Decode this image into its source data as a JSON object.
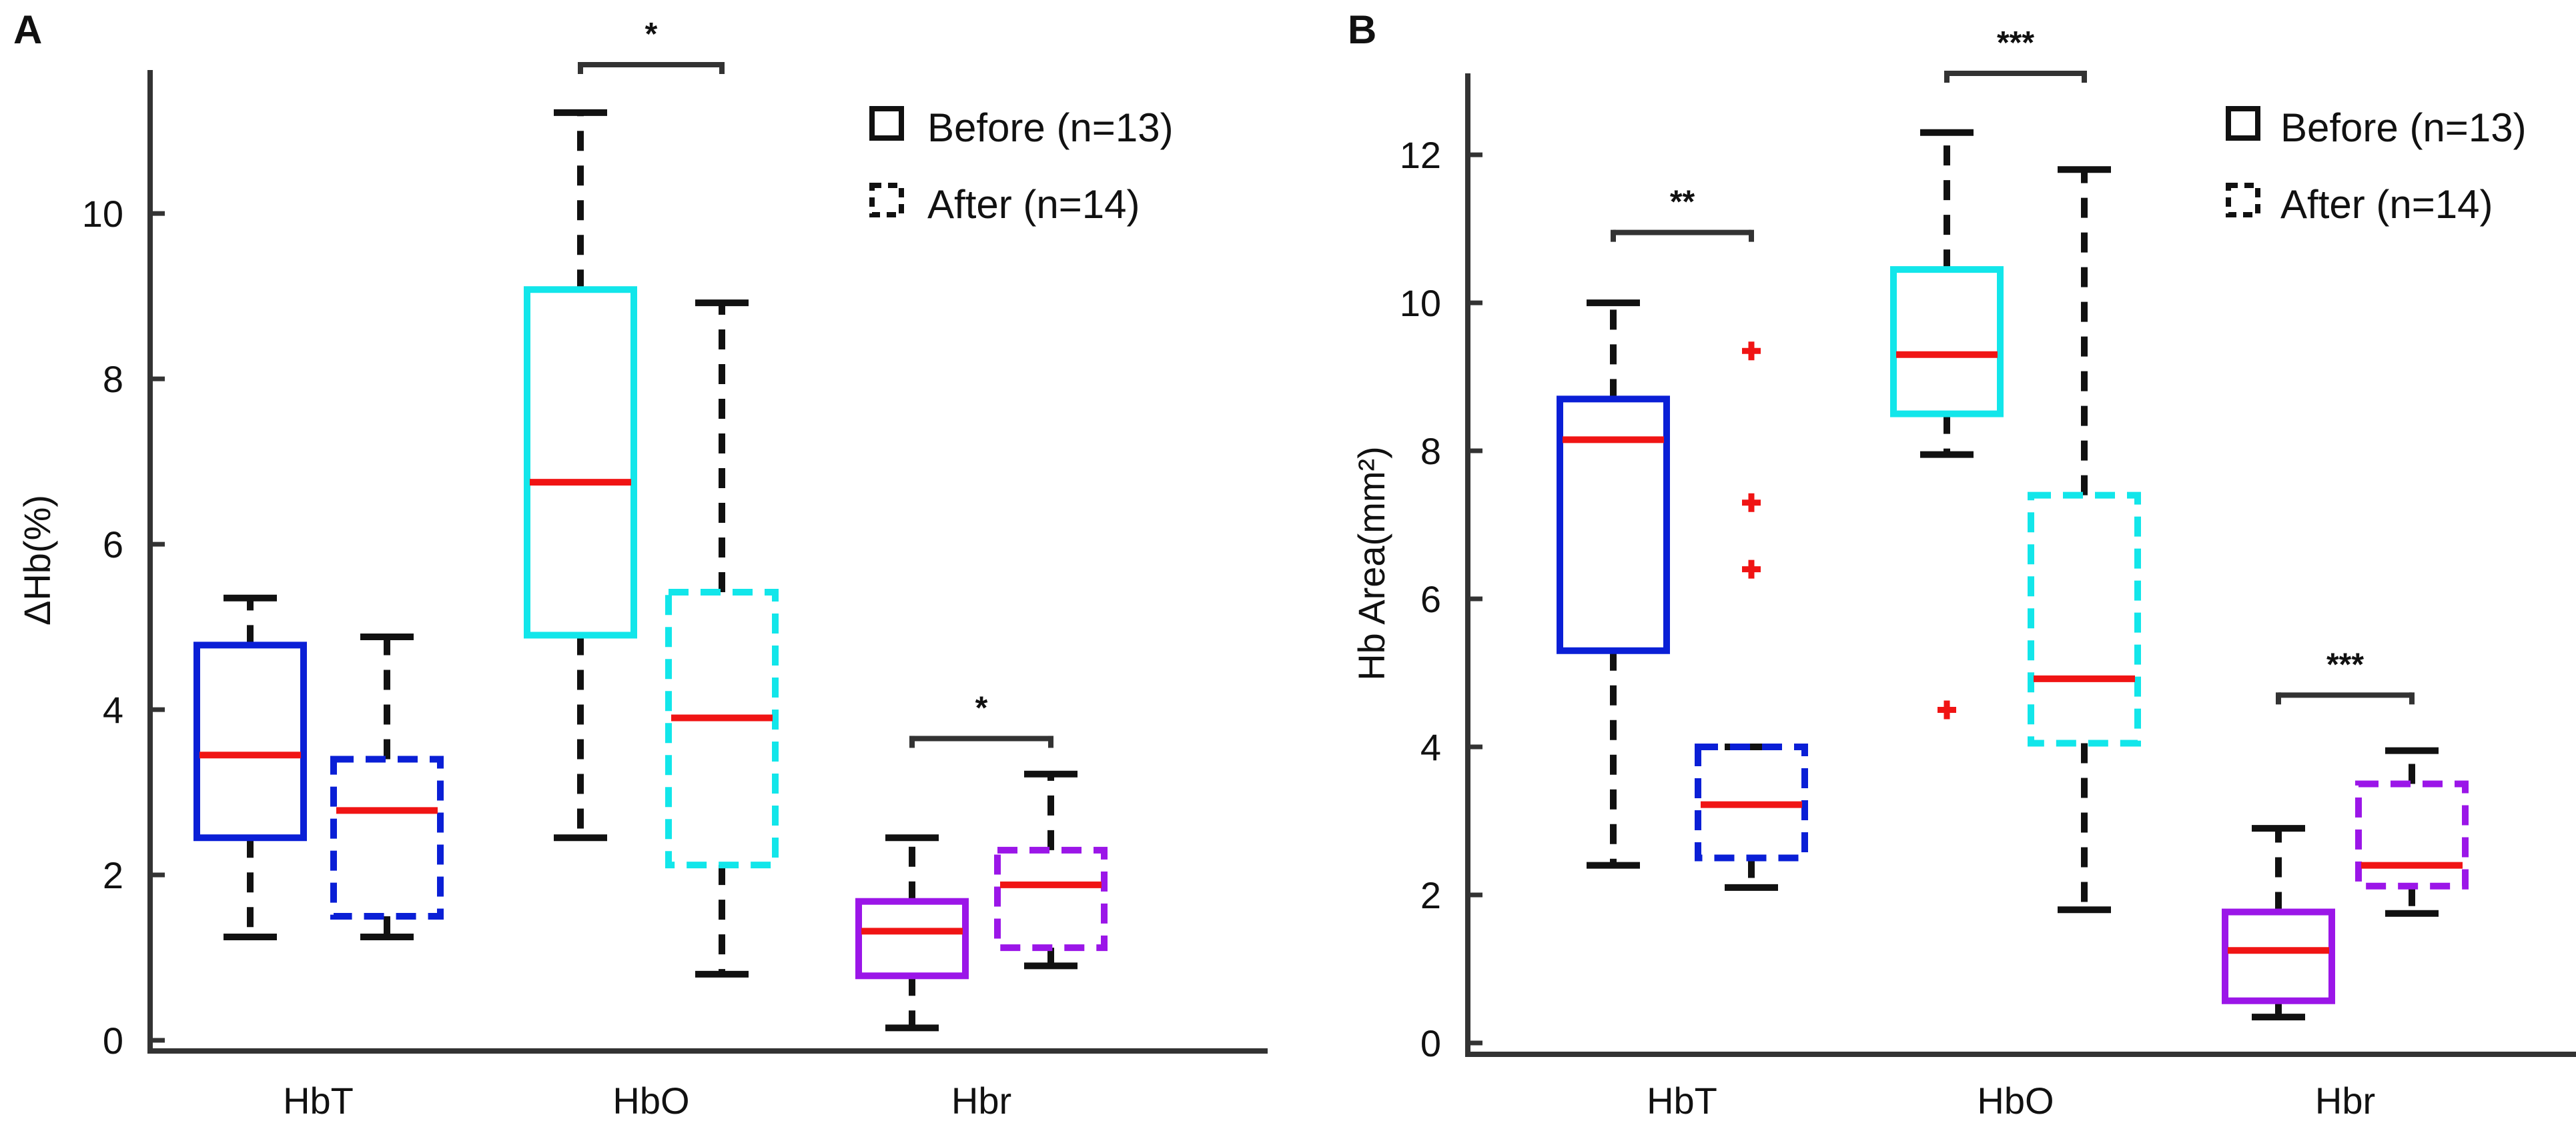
{
  "chart_data": [
    {
      "panel": "A",
      "type": "boxplot",
      "ylabel": "ΔHb(%)",
      "ylim": [
        0,
        11.8
      ],
      "yticks": [
        0,
        2,
        4,
        6,
        8,
        10
      ],
      "ytick_labels": [
        "0",
        "2",
        "4",
        "6",
        "8",
        "10"
      ],
      "categories": [
        "HbT",
        "HbO",
        "Hbr"
      ],
      "legend": {
        "position": "top-right",
        "before_label": "Before (n=13)",
        "after_label": "After (n=14)"
      },
      "boxes": [
        {
          "category": "HbT",
          "group": "Before",
          "color": "#0a1fd6",
          "dashed": false,
          "whisker_low": 1.25,
          "q1": 2.45,
          "median": 3.45,
          "q3": 4.78,
          "whisker_high": 5.35,
          "outliers": []
        },
        {
          "category": "HbT",
          "group": "After",
          "color": "#0a1fd6",
          "dashed": true,
          "whisker_low": 1.25,
          "q1": 1.5,
          "median": 2.78,
          "q3": 3.4,
          "whisker_high": 4.88,
          "outliers": []
        },
        {
          "category": "HbO",
          "group": "Before",
          "color": "#12e6ea",
          "dashed": false,
          "whisker_low": 2.45,
          "q1": 4.9,
          "median": 6.75,
          "q3": 9.08,
          "whisker_high": 11.22,
          "outliers": []
        },
        {
          "category": "HbO",
          "group": "After",
          "color": "#12e6ea",
          "dashed": true,
          "whisker_low": 0.8,
          "q1": 2.12,
          "median": 3.9,
          "q3": 5.42,
          "whisker_high": 8.92,
          "outliers": []
        },
        {
          "category": "Hbr",
          "group": "Before",
          "color": "#9b16e8",
          "dashed": false,
          "whisker_low": 0.15,
          "q1": 0.78,
          "median": 1.32,
          "q3": 1.68,
          "whisker_high": 2.45,
          "outliers": []
        },
        {
          "category": "Hbr",
          "group": "After",
          "color": "#9b16e8",
          "dashed": true,
          "whisker_low": 0.9,
          "q1": 1.12,
          "median": 1.88,
          "q3": 2.3,
          "whisker_high": 3.22,
          "outliers": []
        }
      ],
      "significance": [
        {
          "category": "HbO",
          "y": 11.8,
          "label": "*"
        },
        {
          "category": "Hbr",
          "y": 3.65,
          "label": "*"
        }
      ]
    },
    {
      "panel": "B",
      "type": "boxplot",
      "ylabel": "Hb Area(mm²)",
      "ylim": [
        0,
        13.1
      ],
      "yticks": [
        0,
        2,
        4,
        6,
        8,
        10,
        12
      ],
      "ytick_labels": [
        "0",
        "2",
        "4",
        "6",
        "8",
        "10",
        "12"
      ],
      "categories": [
        "HbT",
        "HbO",
        "Hbr"
      ],
      "legend": {
        "position": "top-right",
        "before_label": "Before (n=13)",
        "after_label": "After (n=14)"
      },
      "boxes": [
        {
          "category": "HbT",
          "group": "Before",
          "color": "#0a1fd6",
          "dashed": false,
          "whisker_low": 2.4,
          "q1": 5.3,
          "median": 8.15,
          "q3": 8.7,
          "whisker_high": 10.0,
          "outliers": []
        },
        {
          "category": "HbT",
          "group": "After",
          "color": "#0a1fd6",
          "dashed": true,
          "whisker_low": 2.1,
          "q1": 2.5,
          "median": 3.22,
          "q3": 4.0,
          "whisker_high": 4.0,
          "outliers": [
            6.4,
            7.3,
            9.35
          ]
        },
        {
          "category": "HbO",
          "group": "Before",
          "color": "#12e6ea",
          "dashed": false,
          "whisker_low": 7.95,
          "q1": 8.5,
          "median": 9.3,
          "q3": 10.45,
          "whisker_high": 12.3,
          "outliers": [
            4.5
          ]
        },
        {
          "category": "HbO",
          "group": "After",
          "color": "#12e6ea",
          "dashed": true,
          "whisker_low": 1.8,
          "q1": 4.05,
          "median": 4.92,
          "q3": 7.4,
          "whisker_high": 11.8,
          "outliers": []
        },
        {
          "category": "Hbr",
          "group": "Before",
          "color": "#9b16e8",
          "dashed": false,
          "whisker_low": 0.35,
          "q1": 0.57,
          "median": 1.25,
          "q3": 1.77,
          "whisker_high": 2.9,
          "outliers": []
        },
        {
          "category": "Hbr",
          "group": "After",
          "color": "#9b16e8",
          "dashed": true,
          "whisker_low": 1.75,
          "q1": 2.12,
          "median": 2.4,
          "q3": 3.5,
          "whisker_high": 3.95,
          "outliers": []
        }
      ],
      "significance": [
        {
          "category": "HbT",
          "y": 10.95,
          "label": "**"
        },
        {
          "category": "HbO",
          "y": 13.1,
          "label": "***"
        },
        {
          "category": "Hbr",
          "y": 4.7,
          "label": "***"
        }
      ]
    }
  ]
}
